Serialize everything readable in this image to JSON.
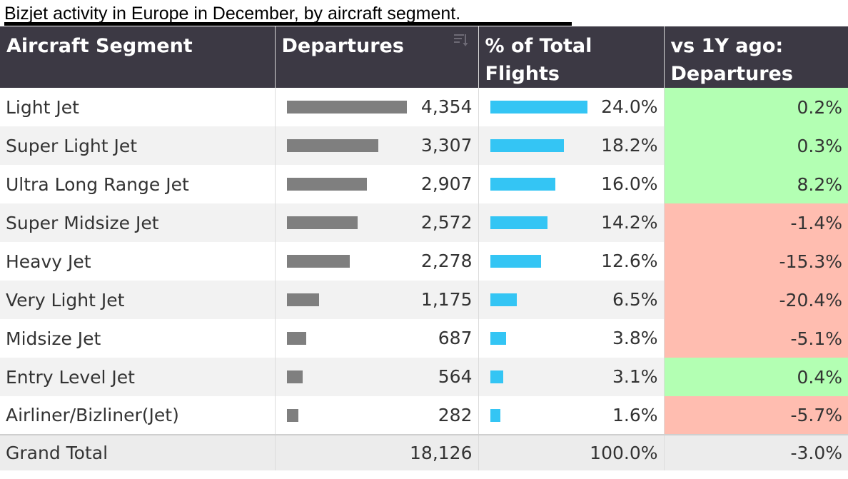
{
  "caption": "Bizjet activity in Europe in December, by aircraft segment.",
  "colors": {
    "header_bg": "#3c3944",
    "departures_bar": "#7f7f7f",
    "pct_bar": "#34c5f4",
    "positive": "#b3ffb3",
    "negative": "#ffbdb0"
  },
  "icons": {
    "sort": "sort-descending-icon"
  },
  "chart_data": {
    "type": "table",
    "columns": [
      "Aircraft Segment",
      "Departures",
      "% of Total Flights",
      "vs 1Y ago: Departures"
    ],
    "header_lines": [
      [
        "Aircraft Segment"
      ],
      [
        "Departures"
      ],
      [
        "% of Total",
        "Flights"
      ],
      [
        "vs 1Y ago:",
        "Departures"
      ]
    ],
    "rows": [
      {
        "segment": "Light Jet",
        "departures": 4354,
        "departures_label": "4,354",
        "pct_total": 24.0,
        "pct_label": "24.0%",
        "yoy": 0.2,
        "yoy_label": "0.2%"
      },
      {
        "segment": "Super Light Jet",
        "departures": 3307,
        "departures_label": "3,307",
        "pct_total": 18.2,
        "pct_label": "18.2%",
        "yoy": 0.3,
        "yoy_label": "0.3%"
      },
      {
        "segment": "Ultra Long Range Jet",
        "departures": 2907,
        "departures_label": "2,907",
        "pct_total": 16.0,
        "pct_label": "16.0%",
        "yoy": 8.2,
        "yoy_label": "8.2%"
      },
      {
        "segment": "Super Midsize Jet",
        "departures": 2572,
        "departures_label": "2,572",
        "pct_total": 14.2,
        "pct_label": "14.2%",
        "yoy": -1.4,
        "yoy_label": "-1.4%"
      },
      {
        "segment": "Heavy Jet",
        "departures": 2278,
        "departures_label": "2,278",
        "pct_total": 12.6,
        "pct_label": "12.6%",
        "yoy": -15.3,
        "yoy_label": "-15.3%"
      },
      {
        "segment": "Very Light Jet",
        "departures": 1175,
        "departures_label": "1,175",
        "pct_total": 6.5,
        "pct_label": "6.5%",
        "yoy": -20.4,
        "yoy_label": "-20.4%"
      },
      {
        "segment": "Midsize Jet",
        "departures": 687,
        "departures_label": "687",
        "pct_total": 3.8,
        "pct_label": "3.8%",
        "yoy": -5.1,
        "yoy_label": "-5.1%"
      },
      {
        "segment": "Entry Level Jet",
        "departures": 564,
        "departures_label": "564",
        "pct_total": 3.1,
        "pct_label": "3.1%",
        "yoy": 0.4,
        "yoy_label": "0.4%"
      },
      {
        "segment": "Airliner/Bizliner(Jet)",
        "departures": 282,
        "departures_label": "282",
        "pct_total": 1.6,
        "pct_label": "1.6%",
        "yoy": -5.7,
        "yoy_label": "-5.7%"
      }
    ],
    "total": {
      "segment": "Grand Total",
      "departures": 18126,
      "departures_label": "18,126",
      "pct_total": 100.0,
      "pct_label": "100.0%",
      "yoy": -3.0,
      "yoy_label": "-3.0%"
    }
  }
}
